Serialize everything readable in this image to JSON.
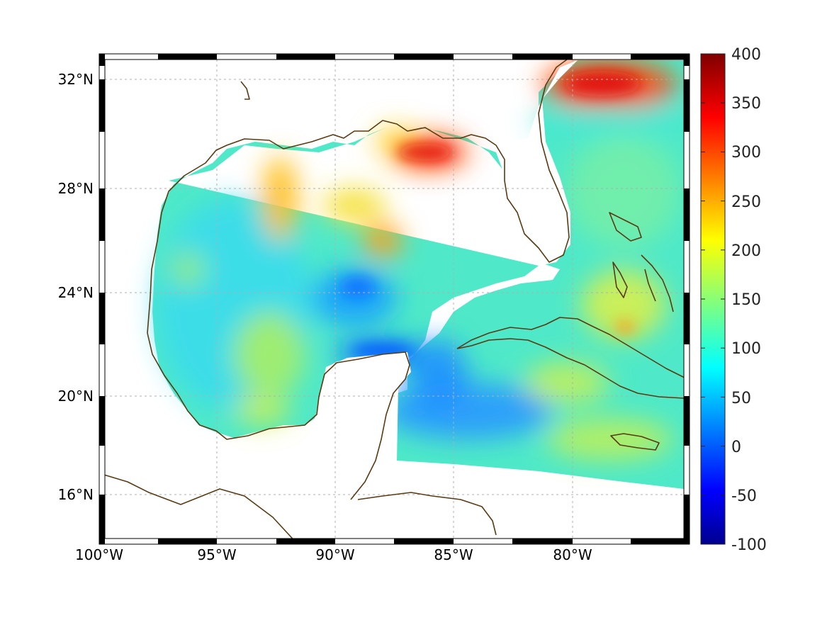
{
  "map": {
    "lat_range": [
      14.3,
      33.0
    ],
    "lon_range": [
      -100,
      -75
    ],
    "lat_ticks": [
      {
        "value": 32,
        "label": "32°N"
      },
      {
        "value": 28,
        "label": "28°N"
      },
      {
        "value": 24,
        "label": "24°N"
      },
      {
        "value": 20,
        "label": "20°N"
      },
      {
        "value": 16,
        "label": "16°N"
      }
    ],
    "lon_ticks": [
      {
        "value": -100,
        "label": "100°W"
      },
      {
        "value": -95,
        "label": "95°W"
      },
      {
        "value": -90,
        "label": "90°W"
      },
      {
        "value": -85,
        "label": "85°W"
      },
      {
        "value": -80,
        "label": "80°W"
      }
    ],
    "grid": true,
    "frame": "black-white-checkered",
    "coastline_color": "#5a3a10",
    "land_color": "#ffffff"
  },
  "colorbar": {
    "range": [
      -100,
      400
    ],
    "colormap": "jet",
    "tick_labels": [
      "400",
      "350",
      "300",
      "250",
      "200",
      "150",
      "100",
      "50",
      "0",
      "-50",
      "-100"
    ],
    "tick_values": [
      400,
      350,
      300,
      250,
      200,
      150,
      100,
      50,
      0,
      -50,
      -100
    ],
    "placement": "right"
  }
}
